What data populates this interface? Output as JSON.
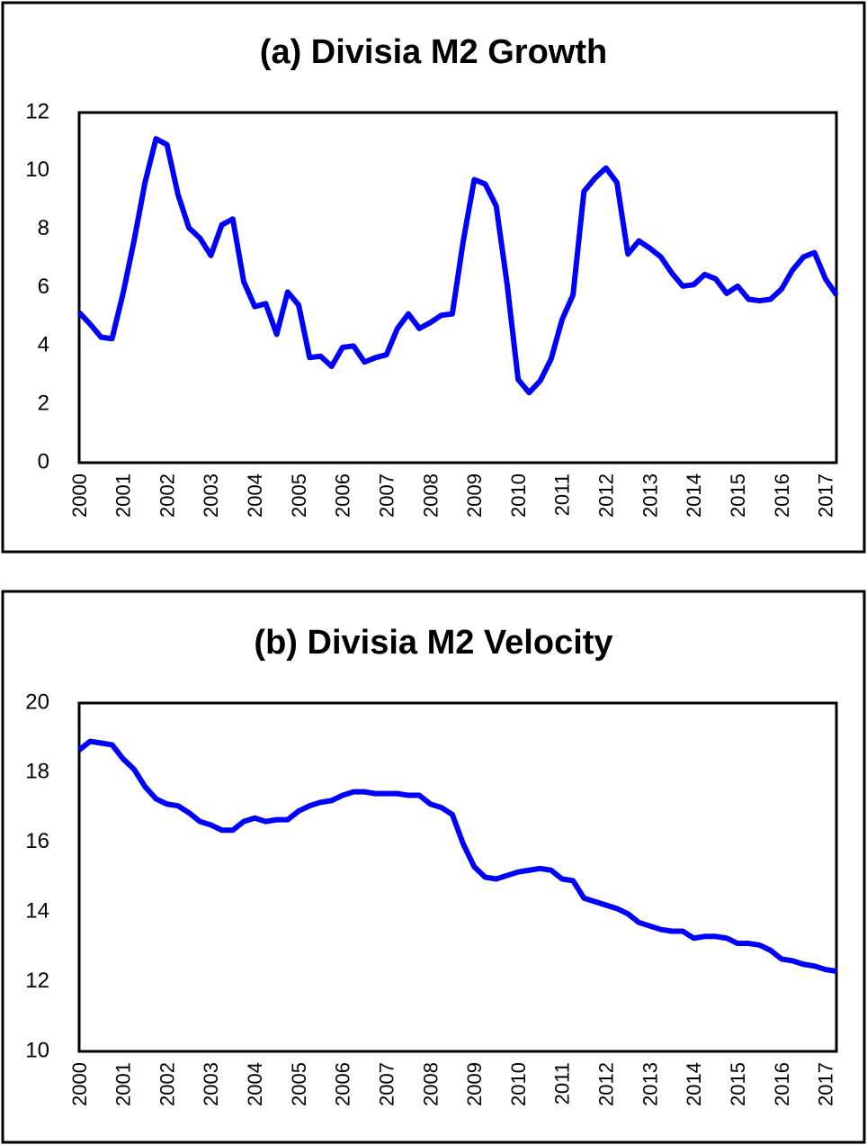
{
  "chart_data": [
    {
      "type": "line",
      "title": "(a) Divisia M2 Growth",
      "categories": [
        "2000",
        null,
        null,
        null,
        "2001",
        null,
        null,
        null,
        "2002",
        null,
        null,
        null,
        "2003",
        null,
        null,
        null,
        "2004",
        null,
        null,
        null,
        "2005",
        null,
        null,
        null,
        "2006",
        null,
        null,
        null,
        "2007",
        null,
        null,
        null,
        "2008",
        null,
        null,
        null,
        "2009",
        null,
        null,
        null,
        "2010",
        null,
        null,
        null,
        "2011",
        null,
        null,
        null,
        "2012",
        null,
        null,
        null,
        "2013",
        null,
        null,
        null,
        "2014",
        null,
        null,
        null,
        "2015",
        null,
        null,
        null,
        "2016",
        null,
        null,
        null,
        "2017",
        null
      ],
      "values": [
        5.15,
        4.75,
        4.3,
        4.25,
        5.8,
        7.6,
        9.6,
        11.1,
        10.9,
        9.2,
        8.05,
        7.7,
        7.1,
        8.15,
        8.35,
        6.2,
        5.35,
        5.45,
        4.4,
        5.85,
        5.4,
        3.6,
        3.65,
        3.3,
        3.95,
        4.0,
        3.45,
        3.6,
        3.7,
        4.6,
        5.1,
        4.6,
        4.8,
        5.05,
        5.1,
        7.6,
        9.7,
        9.55,
        8.8,
        6.1,
        2.85,
        2.4,
        2.8,
        3.55,
        4.9,
        5.75,
        9.3,
        9.75,
        10.1,
        9.6,
        7.15,
        7.6,
        7.35,
        7.05,
        6.5,
        6.05,
        6.1,
        6.45,
        6.3,
        5.8,
        6.05,
        5.6,
        5.55,
        5.6,
        5.95,
        6.6,
        7.05,
        7.2,
        6.3,
        5.75
      ],
      "color": "#0000ff",
      "ylim": [
        0,
        12
      ],
      "yticks": [
        0,
        2,
        4,
        6,
        8,
        10,
        12
      ],
      "grid": false
    },
    {
      "type": "line",
      "title": "(b) Divisia M2 Velocity",
      "categories": [
        "2000",
        null,
        null,
        null,
        "2001",
        null,
        null,
        null,
        "2002",
        null,
        null,
        null,
        "2003",
        null,
        null,
        null,
        "2004",
        null,
        null,
        null,
        "2005",
        null,
        null,
        null,
        "2006",
        null,
        null,
        null,
        "2007",
        null,
        null,
        null,
        "2008",
        null,
        null,
        null,
        "2009",
        null,
        null,
        null,
        "2010",
        null,
        null,
        null,
        "2011",
        null,
        null,
        null,
        "2012",
        null,
        null,
        null,
        "2013",
        null,
        null,
        null,
        "2014",
        null,
        null,
        null,
        "2015",
        null,
        null,
        null,
        "2016",
        null,
        null,
        null,
        "2017",
        null
      ],
      "values": [
        18.65,
        18.9,
        18.85,
        18.8,
        18.4,
        18.1,
        17.6,
        17.25,
        17.1,
        17.05,
        16.85,
        16.6,
        16.5,
        16.35,
        16.35,
        16.6,
        16.7,
        16.6,
        16.65,
        16.65,
        16.9,
        17.05,
        17.15,
        17.2,
        17.35,
        17.45,
        17.45,
        17.4,
        17.4,
        17.4,
        17.35,
        17.35,
        17.1,
        17.0,
        16.8,
        15.95,
        15.3,
        15.0,
        14.95,
        15.05,
        15.15,
        15.2,
        15.25,
        15.2,
        14.95,
        14.9,
        14.4,
        14.3,
        14.2,
        14.1,
        13.95,
        13.7,
        13.6,
        13.5,
        13.45,
        13.45,
        13.25,
        13.3,
        13.3,
        13.25,
        13.1,
        13.1,
        13.05,
        12.9,
        12.65,
        12.6,
        12.5,
        12.45,
        12.35,
        12.3
      ],
      "color": "#0000ff",
      "ylim": [
        10,
        20
      ],
      "yticks": [
        10,
        12,
        14,
        16,
        18,
        20
      ],
      "grid": false
    }
  ]
}
